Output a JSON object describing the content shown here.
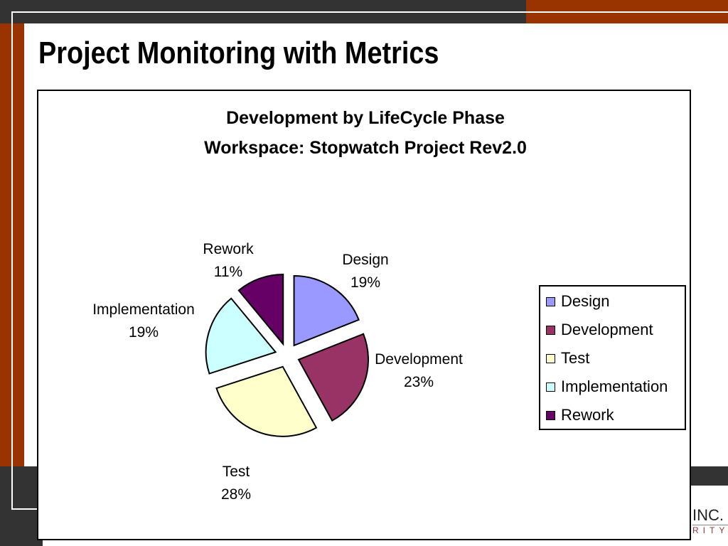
{
  "slide": {
    "title": "Project Monitoring with Metrics",
    "logo_text": [
      "INC.",
      "RITY"
    ]
  },
  "colors": {
    "dark": "#333333",
    "orange": "#993300"
  },
  "chart_data": {
    "type": "pie",
    "title": "Development by LifeCycle Phase",
    "subtitle": "Workspace: Stopwatch Project Rev2.0",
    "categories": [
      "Design",
      "Development",
      "Test",
      "Implementation",
      "Rework"
    ],
    "values": [
      19,
      23,
      28,
      19,
      11
    ],
    "labels": [
      "19%",
      "23%",
      "28%",
      "19%",
      "11%"
    ],
    "colors": [
      "#9999ff",
      "#993366",
      "#ffffcc",
      "#ccffff",
      "#660066"
    ],
    "legend_position": "right",
    "exploded": true
  }
}
